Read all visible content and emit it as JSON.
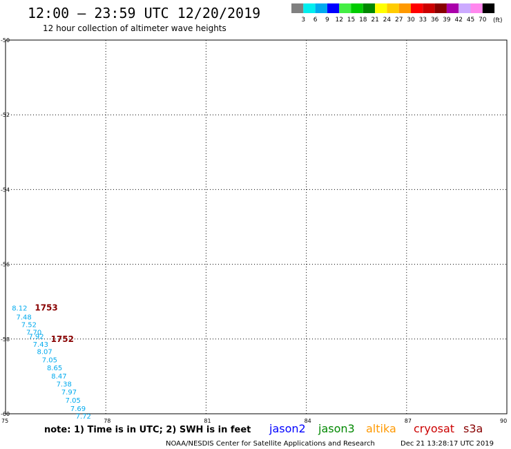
{
  "header": {
    "title": "12:00 – 23:59 UTC 12/20/2019",
    "subtitle": "12 hour collection of altimeter wave heights"
  },
  "colorbar": {
    "unit": "(ft)",
    "bins": [
      {
        "label": "3",
        "color": "#808080"
      },
      {
        "label": "6",
        "color": "#00eeee"
      },
      {
        "label": "9",
        "color": "#00aaee"
      },
      {
        "label": "12",
        "color": "#0000ff"
      },
      {
        "label": "15",
        "color": "#44ee44"
      },
      {
        "label": "18",
        "color": "#00cc00"
      },
      {
        "label": "21",
        "color": "#008800"
      },
      {
        "label": "24",
        "color": "#ffff00"
      },
      {
        "label": "27",
        "color": "#ffcc00"
      },
      {
        "label": "30",
        "color": "#ff9900"
      },
      {
        "label": "33",
        "color": "#ff0000"
      },
      {
        "label": "36",
        "color": "#cc0000"
      },
      {
        "label": "39",
        "color": "#880000"
      },
      {
        "label": "42",
        "color": "#aa00aa"
      },
      {
        "label": "45",
        "color": "#ccaaff"
      },
      {
        "label": "70",
        "color": "#ff88ee"
      },
      {
        "label": "",
        "color": "#000000"
      }
    ]
  },
  "chart_data": {
    "type": "scatter",
    "title": "12:00 – 23:59 UTC 12/20/2019",
    "subtitle": "12 hour collection of altimeter wave heights",
    "xlim": [
      75,
      90
    ],
    "ylim": [
      -60,
      -50
    ],
    "x_ticks": [
      75,
      78,
      81,
      84,
      87,
      90
    ],
    "y_ticks": [
      -50,
      -52,
      -54,
      -56,
      -58,
      -60
    ],
    "x_tick_labels": [
      "75",
      "78",
      "81",
      "84",
      "87",
      "90"
    ],
    "y_tick_labels": [
      "-50",
      "-52",
      "-54",
      "-56",
      "-58",
      "-60"
    ],
    "grid": true,
    "swh_points": [
      {
        "lon": 75.42,
        "lat": -57.16,
        "label": "8.12"
      },
      {
        "lon": 75.55,
        "lat": -57.4,
        "label": "7.48"
      },
      {
        "lon": 75.7,
        "lat": -57.61,
        "label": "7.52"
      },
      {
        "lon": 75.85,
        "lat": -57.81,
        "label": "7.70"
      },
      {
        "lon": 75.92,
        "lat": -57.92,
        "label": "7.92"
      },
      {
        "lon": 76.05,
        "lat": -58.13,
        "label": "7.43"
      },
      {
        "lon": 76.17,
        "lat": -58.33,
        "label": "8.07"
      },
      {
        "lon": 76.32,
        "lat": -58.55,
        "label": "7.05"
      },
      {
        "lon": 76.47,
        "lat": -58.76,
        "label": "8.65"
      },
      {
        "lon": 76.6,
        "lat": -58.98,
        "label": "8.47"
      },
      {
        "lon": 76.75,
        "lat": -59.2,
        "label": "7.38"
      },
      {
        "lon": 76.9,
        "lat": -59.41,
        "label": "7.97"
      },
      {
        "lon": 77.02,
        "lat": -59.63,
        "label": "7.05"
      },
      {
        "lon": 77.17,
        "lat": -59.85,
        "label": "7.69"
      },
      {
        "lon": 77.33,
        "lat": -60.06,
        "label": "7.72"
      }
    ],
    "time_labels": [
      {
        "lon": 76.22,
        "lat": -57.16,
        "label": "1753"
      },
      {
        "lon": 76.7,
        "lat": -58.0,
        "label": "1752"
      }
    ],
    "point_color": "#00aaee",
    "time_color": "#880000"
  },
  "footer": {
    "note": "note: 1) Time is in UTC; 2) SWH is in feet",
    "satellites": [
      {
        "name": "jason2",
        "color": "#0000ff"
      },
      {
        "name": "jason3",
        "color": "#008800"
      },
      {
        "name": "altika",
        "color": "#ff9900"
      },
      {
        "name": "cryosat",
        "color": "#cc0000"
      },
      {
        "name": "s3a",
        "color": "#880000"
      }
    ],
    "credit": "NOAA/NESDIS Center for Satellite Applications and Research",
    "timestamp": "Dec 21 13:28:17 UTC 2019"
  }
}
